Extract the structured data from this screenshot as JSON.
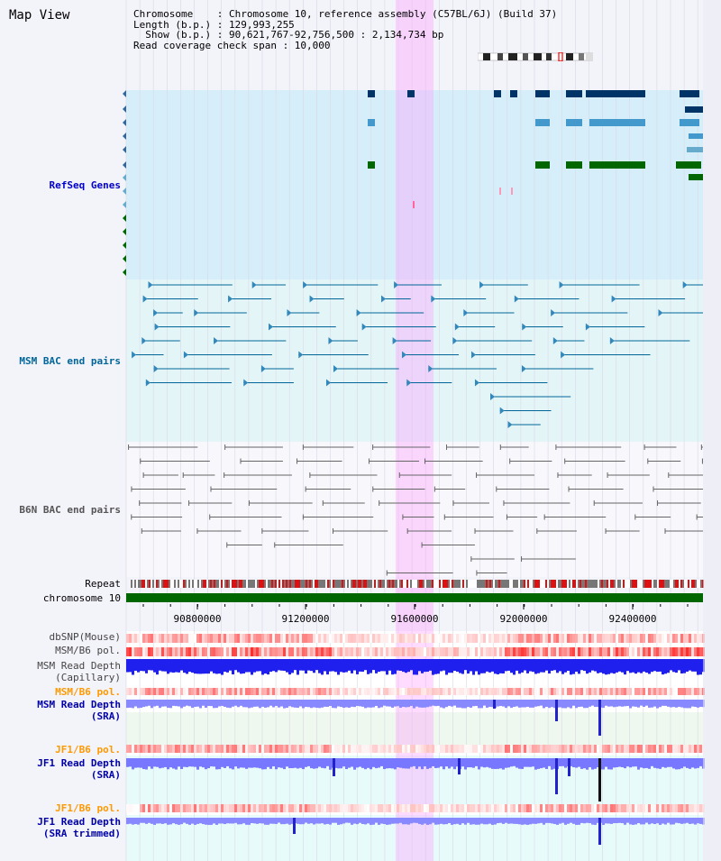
{
  "title": "Map View",
  "info": {
    "line1": "Chromosome    : Chromosome 10, reference assembly (C57BL/6J) (Build 37)",
    "line2": "Length (b.p.) : 129,993,255",
    "line3": "  Show (b.p.) : 90,621,767-92,756,500 : 2,134,734 bp",
    "line4": "Read coverage check span : 10,000"
  },
  "tracks": {
    "refseq": "RefSeq Genes",
    "msm_bac": "MSM BAC end pairs",
    "b6n_bac": "B6N BAC end pairs",
    "repeat": "Repeat",
    "chromosome": "chromosome 10",
    "dbsnp": "dbSNP(Mouse)",
    "msm_pol": "MSM/B6 pol.",
    "msm_depth_cap_1": "MSM Read Depth",
    "msm_depth_cap_2": "(Capillary)",
    "msm_pol2": "MSM/B6 pol.",
    "msm_depth_sra_1": "MSM Read Depth",
    "msm_depth_sra_2": "(SRA)",
    "jf1_pol": "JF1/B6 pol.",
    "jf1_depth_sra_1": "JF1 Read Depth",
    "jf1_depth_sra_2": "(SRA)",
    "jf1_pol2": "JF1/B6 pol.",
    "jf1_depth_trim_1": "JF1 Read Depth",
    "jf1_depth_trim_2": "(SRA trimmed)"
  },
  "axis_ticks": [
    "90800000",
    "91200000",
    "91600000",
    "92000000",
    "92400000"
  ],
  "colors": {
    "refseq_label": "#0000cc",
    "msm_label": "#006699",
    "b6n_label": "#555555",
    "pol_label": "#ff9900",
    "depth_label": "#0000aa",
    "highlight": "#ff99ff",
    "chromosome_bar": "#006600"
  }
}
